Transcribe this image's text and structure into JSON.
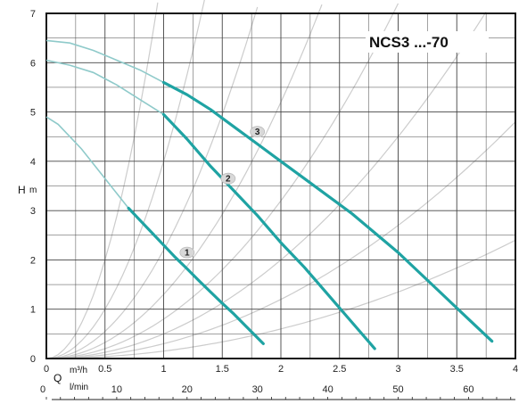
{
  "chart_data": {
    "type": "line",
    "title": "NCS3 ...-70",
    "ylabel": "H",
    "yunit": "m",
    "xlabel_top": "Q",
    "xunit_top": "m³/h",
    "xunit_bottom": "l/min",
    "xlim": [
      0,
      4
    ],
    "ylim": [
      0,
      7
    ],
    "grid": true,
    "x_ticks": [
      "0",
      "0.5",
      "1",
      "1.5",
      "2",
      "2.5",
      "3",
      "3.5",
      "4"
    ],
    "x_tick_values": [
      0,
      0.5,
      1,
      1.5,
      2,
      2.5,
      3,
      3.5,
      4
    ],
    "x_ticks_bottom": [
      "0",
      "10",
      "20",
      "30",
      "40",
      "50",
      "60"
    ],
    "x_ticks_bottom_values": [
      0,
      10,
      20,
      30,
      40,
      50,
      60
    ],
    "y_ticks": [
      "0",
      "1",
      "2",
      "3",
      "4",
      "5",
      "6",
      "7"
    ],
    "y_tick_values": [
      0,
      1,
      2,
      3,
      4,
      5,
      6,
      7
    ],
    "colors": {
      "curve": "#1fa3a3",
      "thin_curve": "#8fcaca",
      "system_curve": "#cccccc",
      "grid": "#444444"
    },
    "series": [
      {
        "name": "1",
        "label_at": [
          1.2,
          2.15
        ],
        "thin_x": [
          0,
          0.1,
          0.2,
          0.3,
          0.4,
          0.5,
          0.6,
          0.7
        ],
        "thin_y": [
          4.9,
          4.75,
          4.5,
          4.25,
          3.95,
          3.65,
          3.35,
          3.05
        ],
        "x": [
          0.7,
          0.8,
          0.9,
          1.0,
          1.1,
          1.2,
          1.3,
          1.4,
          1.5,
          1.6,
          1.7,
          1.8,
          1.85
        ],
        "y": [
          3.05,
          2.8,
          2.55,
          2.3,
          2.05,
          1.82,
          1.58,
          1.35,
          1.12,
          0.9,
          0.66,
          0.42,
          0.3
        ]
      },
      {
        "name": "2",
        "label_at": [
          1.55,
          3.65
        ],
        "thin_x": [
          0,
          0.2,
          0.4,
          0.6,
          0.8,
          1.0
        ],
        "thin_y": [
          6.05,
          5.95,
          5.8,
          5.55,
          5.25,
          4.95
        ],
        "x": [
          1.0,
          1.2,
          1.4,
          1.6,
          1.8,
          2.0,
          2.2,
          2.4,
          2.6,
          2.8
        ],
        "y": [
          4.95,
          4.45,
          3.9,
          3.4,
          2.9,
          2.35,
          1.85,
          1.3,
          0.75,
          0.2
        ]
      },
      {
        "name": "3",
        "label_at": [
          1.8,
          4.6
        ],
        "thin_x": [
          0,
          0.2,
          0.4,
          0.6,
          0.8,
          1.0
        ],
        "thin_y": [
          6.45,
          6.4,
          6.25,
          6.05,
          5.85,
          5.6
        ],
        "x": [
          1.0,
          1.2,
          1.4,
          1.6,
          1.8,
          2.0,
          2.2,
          2.4,
          2.6,
          2.8,
          3.0,
          3.2,
          3.4,
          3.6,
          3.8
        ],
        "y": [
          5.6,
          5.35,
          5.05,
          4.7,
          4.35,
          4.0,
          3.65,
          3.3,
          2.95,
          2.55,
          2.15,
          1.7,
          1.25,
          0.8,
          0.35
        ]
      }
    ],
    "system_curves_k": [
      0.15,
      0.3,
      0.5,
      0.8,
      1.3,
      2.2,
      4.0,
      8.0
    ]
  }
}
